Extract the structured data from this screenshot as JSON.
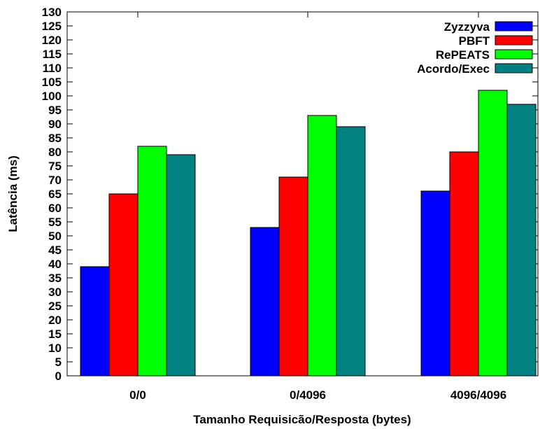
{
  "chart_data": {
    "type": "bar",
    "title": "",
    "xlabel": "Tamanho Requisicão/Resposta (bytes)",
    "ylabel": "Latência (ms)",
    "ylim": [
      0,
      130
    ],
    "ytick_step": 5,
    "categories": [
      "0/0",
      "0/4096",
      "4096/4096"
    ],
    "series": [
      {
        "name": "Zyzzyva",
        "color": "#0000ff",
        "values": [
          39,
          53,
          66
        ]
      },
      {
        "name": "PBFT",
        "color": "#ff0000",
        "values": [
          65,
          71,
          80
        ]
      },
      {
        "name": "RePEATS",
        "color": "#00ff00",
        "values": [
          82,
          93,
          102
        ]
      },
      {
        "name": "Acordo/Exec",
        "color": "#008080",
        "values": [
          79,
          89,
          97
        ]
      }
    ],
    "legend_position": "top-right",
    "grid": false
  }
}
